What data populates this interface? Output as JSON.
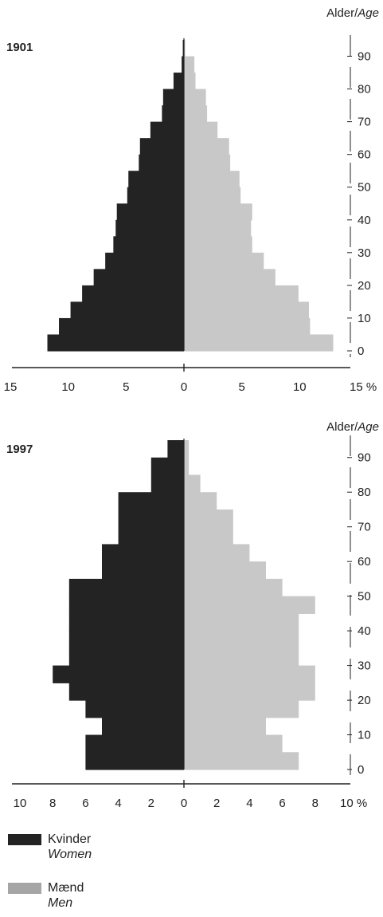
{
  "chart_data": [
    {
      "type": "bar",
      "orientation": "horizontal-pyramid",
      "title": "1901",
      "y_axis_title": "Alder/",
      "y_axis_title_italic": "Age",
      "age_ticks": [
        "0",
        "10",
        "20",
        "30",
        "40",
        "50",
        "60",
        "70",
        "80",
        "90"
      ],
      "x_ticks_left": [
        "15",
        "10",
        "5",
        "0"
      ],
      "x_ticks_right": [
        "5",
        "10",
        "15 %"
      ],
      "xlim": [
        0,
        15
      ],
      "age_groups_start": [
        0,
        5,
        10,
        15,
        20,
        25,
        30,
        35,
        40,
        45,
        50,
        55,
        60,
        65,
        70,
        75,
        80,
        85,
        90
      ],
      "series": [
        {
          "name": "Kvinder",
          "side": "left",
          "color": "#232323",
          "values": [
            11.8,
            10.8,
            9.8,
            8.8,
            7.8,
            6.8,
            6.1,
            5.9,
            5.8,
            4.9,
            4.8,
            3.9,
            3.8,
            2.9,
            1.9,
            1.8,
            0.9,
            0.2,
            0.1
          ]
        },
        {
          "name": "Mænd",
          "side": "right",
          "color": "#c8c8c8",
          "values": [
            12.9,
            10.9,
            10.8,
            9.9,
            7.9,
            6.9,
            5.9,
            5.8,
            5.9,
            4.9,
            4.8,
            4.0,
            3.9,
            2.9,
            2.0,
            1.9,
            1.0,
            0.9,
            0.1
          ]
        }
      ]
    },
    {
      "type": "bar",
      "orientation": "horizontal-pyramid",
      "title": "1997",
      "y_axis_title": "Alder/",
      "y_axis_title_italic": "Age",
      "age_ticks": [
        "0",
        "10",
        "20",
        "30",
        "40",
        "50",
        "60",
        "70",
        "80",
        "90"
      ],
      "x_ticks_left": [
        "10",
        "8",
        "6",
        "4",
        "2",
        "0"
      ],
      "x_ticks_right": [
        "2",
        "4",
        "6",
        "8",
        "10 %"
      ],
      "xlim": [
        0,
        10
      ],
      "age_groups_start": [
        0,
        5,
        10,
        15,
        20,
        25,
        30,
        35,
        40,
        45,
        50,
        55,
        60,
        65,
        70,
        75,
        80,
        85,
        90
      ],
      "series": [
        {
          "name": "Kvinder",
          "side": "left",
          "color": "#232323",
          "values": [
            6.0,
            6.0,
            5.0,
            6.0,
            7.0,
            8.0,
            7.0,
            7.0,
            7.0,
            7.0,
            7.0,
            5.0,
            5.0,
            4.0,
            4.0,
            4.0,
            2.0,
            2.0,
            1.0
          ]
        },
        {
          "name": "Mænd",
          "side": "right",
          "color": "#c8c8c8",
          "values": [
            7.0,
            6.0,
            5.0,
            7.0,
            8.0,
            8.0,
            7.0,
            7.0,
            7.0,
            8.0,
            6.0,
            5.0,
            4.0,
            3.0,
            3.0,
            2.0,
            1.0,
            0.3,
            0.3
          ]
        }
      ]
    }
  ],
  "legend": {
    "women_label": "Kvinder",
    "women_label_en": "Women",
    "men_label": "Mænd",
    "men_label_en": "Men",
    "women_color": "#232323",
    "men_color": "#a5a5a5"
  }
}
